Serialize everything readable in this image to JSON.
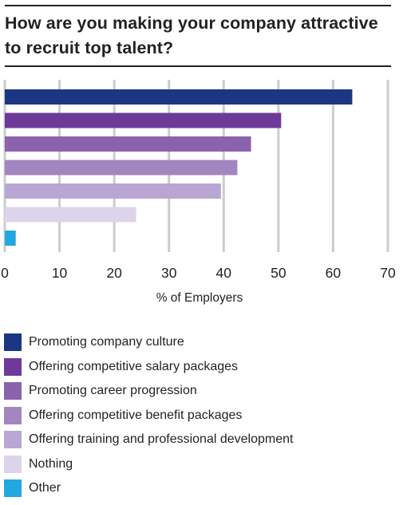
{
  "title": "How are you making your company attractive to recruit top talent?",
  "chart_data": {
    "type": "bar",
    "orientation": "horizontal",
    "title": "How are you making your company attractive to recruit top talent?",
    "xlabel": "% of Employers",
    "ylabel": "",
    "xlim": [
      0,
      70
    ],
    "xticks": [
      0,
      10,
      20,
      30,
      40,
      50,
      60,
      70
    ],
    "grid": true,
    "legend_position": "bottom",
    "categories": [
      "Promoting company culture",
      "Offering competitive salary packages",
      "Promoting career progression",
      "Offering competitive benefit packages",
      "Offering training and professional development",
      "Nothing",
      "Other"
    ],
    "values": [
      63.5,
      50.5,
      45,
      42.5,
      39.5,
      24,
      2
    ],
    "colors": [
      "#1b3682",
      "#6e3a99",
      "#8b63ad",
      "#a286c0",
      "#b9a6d3",
      "#dcd4ea",
      "#21a8e1"
    ]
  }
}
